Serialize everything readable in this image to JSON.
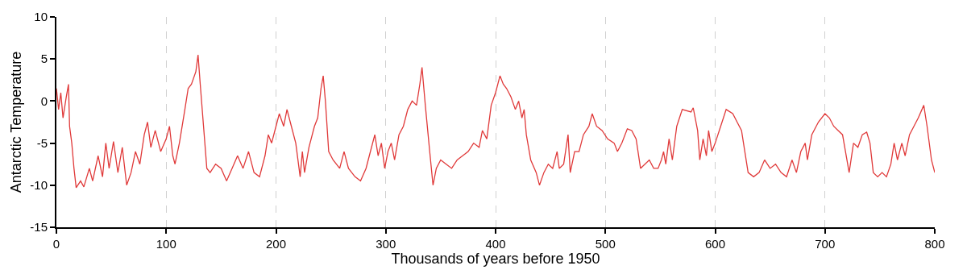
{
  "chart_data": {
    "type": "line",
    "xlabel": "Thousands of years before 1950",
    "ylabel": "Antarctic Temperature",
    "x": [
      0,
      2,
      4,
      6,
      9,
      11,
      12,
      14,
      16,
      18,
      22,
      25,
      30,
      33,
      38,
      42,
      45,
      48,
      52,
      56,
      60,
      64,
      68,
      72,
      76,
      80,
      83,
      86,
      90,
      95,
      100,
      103,
      106,
      108,
      112,
      117,
      120,
      123,
      127,
      129,
      131,
      134,
      137,
      140,
      145,
      150,
      155,
      160,
      165,
      170,
      175,
      180,
      185,
      190,
      193,
      196,
      200,
      203,
      207,
      210,
      214,
      218,
      222,
      224,
      226,
      230,
      235,
      238,
      241,
      243,
      245,
      248,
      252,
      258,
      262,
      266,
      272,
      277,
      282,
      285,
      290,
      293,
      296,
      299,
      302,
      305,
      308,
      312,
      316,
      320,
      324,
      328,
      331,
      333,
      336,
      340,
      343,
      346,
      350,
      355,
      360,
      365,
      370,
      375,
      380,
      385,
      388,
      392,
      396,
      400,
      404,
      407,
      410,
      414,
      418,
      421,
      424,
      426,
      428,
      432,
      437,
      440,
      444,
      448,
      452,
      456,
      458,
      462,
      466,
      468,
      472,
      476,
      480,
      485,
      488,
      492,
      497,
      502,
      508,
      511,
      515,
      520,
      524,
      528,
      532,
      536,
      540,
      544,
      548,
      551,
      553,
      555,
      558,
      561,
      565,
      570,
      578,
      580,
      584,
      586,
      589,
      592,
      594,
      597,
      600,
      605,
      610,
      616,
      620,
      624,
      627,
      630,
      635,
      640,
      645,
      650,
      655,
      660,
      665,
      670,
      674,
      678,
      682,
      684,
      688,
      694,
      700,
      704,
      708,
      712,
      716,
      720,
      722,
      726,
      730,
      734,
      738,
      741,
      744,
      748,
      752,
      756,
      760,
      763,
      766,
      770,
      773,
      777,
      781,
      785,
      790,
      793,
      797,
      800
    ],
    "series": [
      {
        "color": "#e03a3a",
        "values": [
          1.5,
          -1,
          1,
          -2,
          0.5,
          2,
          -3,
          -5,
          -8,
          -10.3,
          -9.5,
          -10.2,
          -8,
          -9.5,
          -6.5,
          -9,
          -5,
          -8,
          -4.8,
          -8.5,
          -5.5,
          -10,
          -8.5,
          -6,
          -7.5,
          -4,
          -2.5,
          -5.5,
          -3.5,
          -6,
          -4.5,
          -3,
          -6.5,
          -7.5,
          -5,
          -1,
          1.5,
          2,
          3.5,
          5.5,
          2,
          -3,
          -8,
          -8.5,
          -7.5,
          -8,
          -9.5,
          -8,
          -6.5,
          -8,
          -6,
          -8.5,
          -9,
          -6.5,
          -4,
          -5,
          -3,
          -1.5,
          -3,
          -1,
          -3,
          -5,
          -9,
          -6,
          -8.5,
          -5.5,
          -3,
          -2,
          1.5,
          3,
          0,
          -6,
          -7,
          -8,
          -6,
          -8,
          -9,
          -9.5,
          -8,
          -6.5,
          -4,
          -6.5,
          -5,
          -8,
          -6,
          -5,
          -7,
          -4,
          -3,
          -1,
          0,
          -0.5,
          2,
          4,
          -0.5,
          -6,
          -10,
          -8,
          -7,
          -7.5,
          -8,
          -7,
          -6.5,
          -6,
          -5,
          -5.5,
          -3.5,
          -4.5,
          -0.5,
          1,
          3,
          2,
          1.5,
          0.5,
          -1,
          0,
          -2,
          -1,
          -4,
          -7,
          -8.5,
          -10,
          -8.5,
          -7.5,
          -8,
          -6,
          -8,
          -7.5,
          -4,
          -8.5,
          -6,
          -6,
          -4,
          -3,
          -1.5,
          -3,
          -3.5,
          -4.5,
          -5,
          -6,
          -5,
          -3.3,
          -3.5,
          -4.5,
          -8,
          -7.5,
          -7,
          -8,
          -8,
          -7,
          -6,
          -7.5,
          -4.5,
          -7,
          -3,
          -1,
          -1.3,
          -0.8,
          -3.5,
          -7,
          -4.5,
          -6.5,
          -3.5,
          -6,
          -5,
          -3,
          -1,
          -1.5,
          -2.5,
          -3.5,
          -6,
          -8.5,
          -9,
          -8.5,
          -7,
          -8,
          -7.5,
          -8.5,
          -9,
          -7,
          -8.5,
          -6,
          -5,
          -7,
          -4,
          -2.5,
          -1.5,
          -2,
          -3,
          -3.5,
          -4,
          -7,
          -8.5,
          -5,
          -5.5,
          -4,
          -3.7,
          -5,
          -8.5,
          -9,
          -8.5,
          -9,
          -7.5,
          -5,
          -7,
          -5,
          -6.5,
          -4,
          -3,
          -2,
          -0.5,
          -3,
          -7,
          -8.5
        ]
      }
    ],
    "xlim": [
      0,
      800
    ],
    "xticks": [
      0,
      100,
      200,
      300,
      400,
      500,
      600,
      700,
      800
    ],
    "ylim": [
      -15,
      10
    ],
    "yticks": [
      -15,
      -10,
      -5,
      0,
      5,
      10
    ],
    "grid": "x",
    "marker": "none",
    "line_style": "solid"
  }
}
